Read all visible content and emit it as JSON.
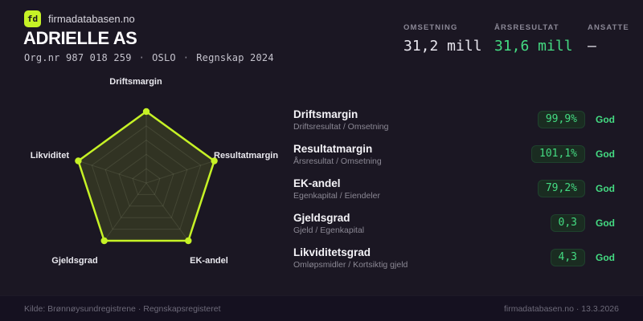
{
  "brand": {
    "logo": "fd",
    "site": "firmadatabasen.no"
  },
  "header": {
    "company_name": "ADRIELLE AS",
    "org_number": "Org.nr 987 018 259",
    "location": "OSLO",
    "report_period": "Regnskap 2024",
    "separator": "·"
  },
  "stats": [
    {
      "label": "OMSETNING",
      "value": "31,2 mill"
    },
    {
      "label": "ÅRSRESULTAT",
      "value": "31,6 mill"
    },
    {
      "label": "ANSATTE",
      "value": "–"
    }
  ],
  "chart_data": {
    "type": "radar",
    "categories": [
      "Driftsmargin",
      "Resultatmargin",
      "EK-andel",
      "Gjeldsgrad",
      "Likviditet"
    ],
    "values": [
      1,
      1,
      1,
      1,
      1
    ],
    "max": 1,
    "grid_levels": 5,
    "legend": false,
    "title": ""
  },
  "metrics": [
    {
      "name": "Driftsmargin",
      "formula": "Driftsresultat / Omsetning",
      "value": "99,9%",
      "rating": "God"
    },
    {
      "name": "Resultatmargin",
      "formula": "Årsresultat / Omsetning",
      "value": "101,1%",
      "rating": "God"
    },
    {
      "name": "EK-andel",
      "formula": "Egenkapital / Eiendeler",
      "value": "79,2%",
      "rating": "God"
    },
    {
      "name": "Gjeldsgrad",
      "formula": "Gjeld / Egenkapital",
      "value": "0,3",
      "rating": "God"
    },
    {
      "name": "Likviditetsgrad",
      "formula": "Omløpsmidler / Kortsiktig gjeld",
      "value": "4,3",
      "rating": "God"
    }
  ],
  "footer": {
    "source": "Kilde: Brønnøysundregistrene · Regnskapsregisteret",
    "site_date": "firmadatabasen.no · 13.3.2026"
  },
  "colors": {
    "background": "#1b1723",
    "footer_background": "#151120",
    "lime": "#c6f226",
    "green": "#44db82",
    "pill_background": "#1a2c21",
    "muted_text": "#8b8894",
    "radar_fill": "rgba(198,242,38,0.13)",
    "radar_grid": "rgba(235,245,210,0.10)"
  }
}
